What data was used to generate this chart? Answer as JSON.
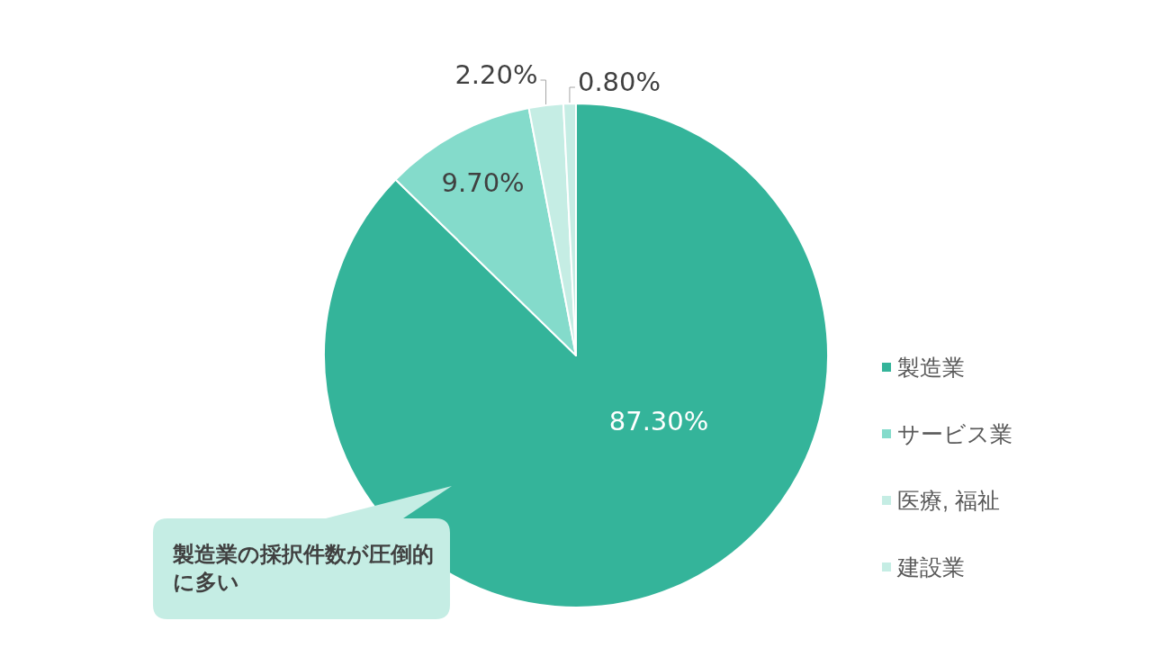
{
  "chart_data": {
    "type": "pie",
    "categories": [
      "製造業",
      "サービス業",
      "医療, 福祉",
      "建設業"
    ],
    "values": [
      87.3,
      9.7,
      2.2,
      0.8
    ],
    "colors": [
      "#34b49a",
      "#84dbcb",
      "#c5ede4",
      "#c5ede4"
    ],
    "value_labels": [
      "87.30%",
      "9.70%",
      "2.20%",
      "0.80%"
    ],
    "legend": "right",
    "annotations": [
      "製造業の採択件数が圧倒的に多い"
    ]
  }
}
